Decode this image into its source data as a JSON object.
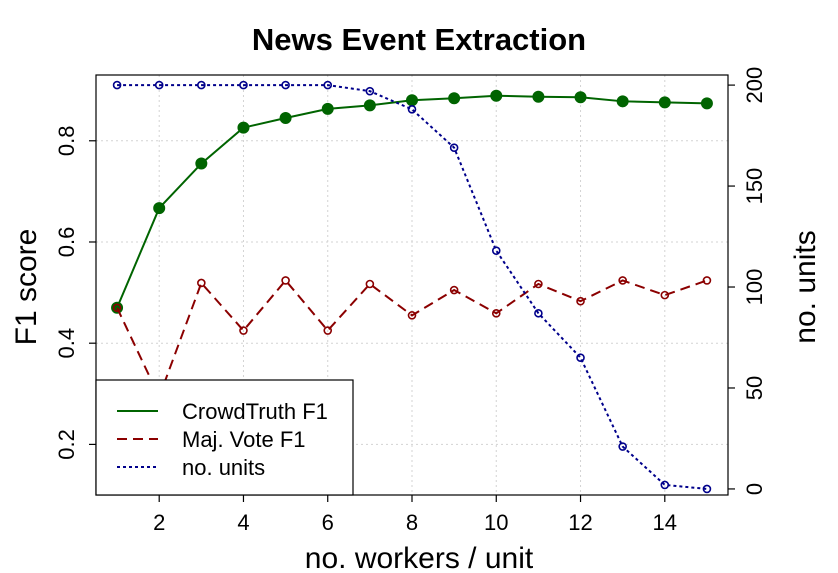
{
  "chart_data": {
    "type": "line",
    "title": "News Event Extraction",
    "xlabel": "no. workers / unit",
    "ylabel": "F1 score",
    "y2label": "no. units",
    "xlim": [
      0.5,
      15.5
    ],
    "ylim": [
      0.1,
      0.93
    ],
    "y2lim": [
      -3,
      205
    ],
    "x_ticks": [
      2,
      4,
      6,
      8,
      10,
      12,
      14
    ],
    "y_ticks": [
      0.2,
      0.4,
      0.6,
      0.8
    ],
    "y2_ticks": [
      0,
      50,
      100,
      150,
      200
    ],
    "grid": true,
    "legend_position": "bottom-left",
    "x": [
      1,
      2,
      3,
      4,
      5,
      6,
      7,
      8,
      9,
      10,
      11,
      12,
      13,
      14,
      15
    ],
    "series": [
      {
        "name": "CrowdTruth F1",
        "axis": "left",
        "color": "#006400",
        "style": "solid",
        "marker": "filled-circle",
        "values": [
          0.47,
          0.667,
          0.755,
          0.826,
          0.845,
          0.863,
          0.87,
          0.88,
          0.884,
          0.889,
          0.887,
          0.886,
          0.878,
          0.876,
          0.874
        ]
      },
      {
        "name": "Maj. Vote F1",
        "axis": "left",
        "color": "#8b0000",
        "style": "dashed",
        "marker": "open-circle",
        "values": [
          0.47,
          0.294,
          0.519,
          0.425,
          0.524,
          0.425,
          0.517,
          0.455,
          0.505,
          0.459,
          0.517,
          0.483,
          0.524,
          0.495,
          0.524
        ]
      },
      {
        "name": "no. units",
        "axis": "right",
        "color": "#00008b",
        "style": "dotted",
        "marker": "open-circle",
        "values": [
          200,
          200,
          200,
          200,
          200,
          200,
          197,
          188,
          169,
          118,
          87,
          65,
          21,
          2,
          0
        ]
      }
    ]
  }
}
